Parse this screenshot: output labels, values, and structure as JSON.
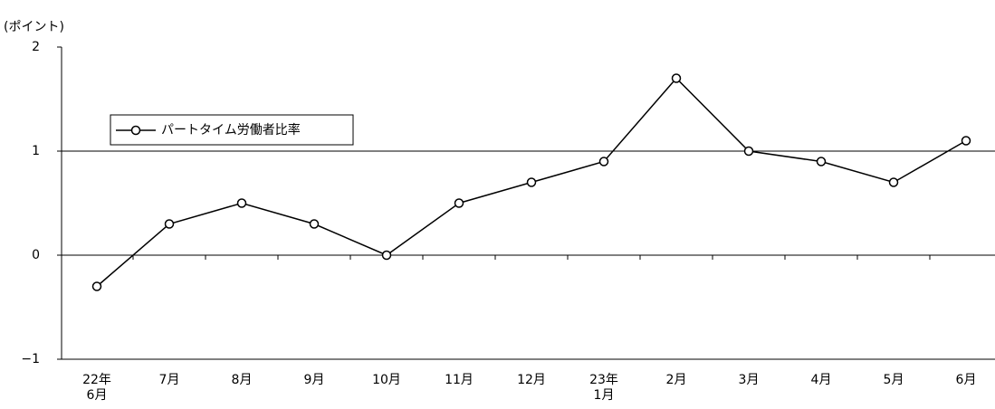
{
  "chart_data": {
    "type": "line",
    "y_axis_label": "(ポイント)",
    "categories": [
      [
        "22年",
        "6月"
      ],
      [
        "7月"
      ],
      [
        "8月"
      ],
      [
        "9月"
      ],
      [
        "10月"
      ],
      [
        "11月"
      ],
      [
        "12月"
      ],
      [
        "23年",
        "1月"
      ],
      [
        "2月"
      ],
      [
        "3月"
      ],
      [
        "4月"
      ],
      [
        "5月"
      ],
      [
        "6月"
      ]
    ],
    "series": [
      {
        "name": "パートタイム労働者比率",
        "color": "#000000",
        "values": [
          -0.3,
          0.3,
          0.5,
          0.3,
          0,
          0.5,
          0.7,
          0.9,
          1.7,
          1.0,
          0.9,
          0.7,
          1.1
        ]
      }
    ],
    "ylim": [
      -1,
      2
    ],
    "yticks": [
      {
        "value": -1,
        "label": "−1"
      },
      0,
      1,
      2
    ],
    "grid": true,
    "legend": "upper-left"
  }
}
